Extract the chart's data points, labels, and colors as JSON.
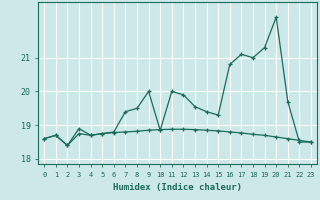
{
  "xlabel": "Humidex (Indice chaleur)",
  "background_color": "#cce8e8",
  "grid_color": "#ffffff",
  "line_color": "#1a6b5a",
  "x_values": [
    0,
    1,
    2,
    3,
    4,
    5,
    6,
    7,
    8,
    9,
    10,
    11,
    12,
    13,
    14,
    15,
    16,
    17,
    18,
    19,
    20,
    21,
    22,
    23
  ],
  "y1_values": [
    18.6,
    18.7,
    18.4,
    18.9,
    18.7,
    18.75,
    18.8,
    19.4,
    19.5,
    20.0,
    18.85,
    20.0,
    19.9,
    19.55,
    19.4,
    19.3,
    20.8,
    21.1,
    21.0,
    21.3,
    22.2,
    19.7,
    18.5,
    18.5
  ],
  "y2_values": [
    18.6,
    18.7,
    18.4,
    18.75,
    18.7,
    18.75,
    18.78,
    18.8,
    18.82,
    18.85,
    18.87,
    18.88,
    18.88,
    18.87,
    18.85,
    18.83,
    18.8,
    18.77,
    18.73,
    18.7,
    18.65,
    18.6,
    18.55,
    18.5
  ],
  "ylim_min": 17.85,
  "ylim_max": 22.65,
  "yticks": [
    18,
    19,
    20,
    21
  ],
  "xticks": [
    0,
    1,
    2,
    3,
    4,
    5,
    6,
    7,
    8,
    9,
    10,
    11,
    12,
    13,
    14,
    15,
    16,
    17,
    18,
    19,
    20,
    21,
    22,
    23
  ]
}
